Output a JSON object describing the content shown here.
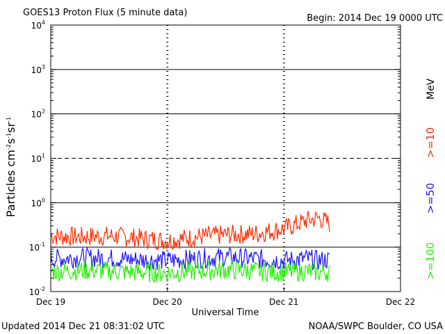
{
  "chart_data": {
    "type": "line",
    "title": "GOES13 Proton Flux (5 minute data)",
    "begin_label": "Begin: 2014 Dec 19 0000 UTC",
    "xlabel": "Universal Time",
    "ylabel": "Particles cm⁻²s⁻¹sr⁻¹",
    "yscale": "log",
    "ylim": [
      0.01,
      10000
    ],
    "y_ticks": [
      {
        "base": "10",
        "exp": "-2"
      },
      {
        "base": "10",
        "exp": "-1"
      },
      {
        "base": "10",
        "exp": "0"
      },
      {
        "base": "10",
        "exp": "1"
      },
      {
        "base": "10",
        "exp": "2"
      },
      {
        "base": "10",
        "exp": "3"
      },
      {
        "base": "10",
        "exp": "4"
      }
    ],
    "x_ticks": [
      "Dec 19",
      "Dec 20",
      "Dec 21",
      "Dec 22"
    ],
    "xlim_days": [
      0,
      3
    ],
    "threshold_lines": [
      0.1,
      1,
      100,
      1000
    ],
    "dashed_lines": [
      10
    ],
    "legend_unit": "MeV",
    "series": [
      {
        "name": ">=10",
        "color": "#ff2a00",
        "x_days": [
          0.0,
          0.25,
          0.5,
          0.75,
          1.0,
          1.25,
          1.5,
          1.75,
          2.0,
          2.1,
          2.2,
          2.3,
          2.4
        ],
        "values": [
          0.18,
          0.17,
          0.18,
          0.16,
          0.14,
          0.17,
          0.19,
          0.2,
          0.26,
          0.32,
          0.4,
          0.45,
          0.33
        ]
      },
      {
        "name": ">=50",
        "color": "#1a10ff",
        "x_days": [
          0.0,
          0.25,
          0.5,
          0.75,
          1.0,
          1.25,
          1.5,
          1.75,
          2.0,
          2.1,
          2.2,
          2.3,
          2.4
        ],
        "values": [
          0.055,
          0.058,
          0.056,
          0.052,
          0.05,
          0.055,
          0.06,
          0.055,
          0.05,
          0.052,
          0.055,
          0.05,
          0.052
        ]
      },
      {
        "name": ">=100",
        "color": "#22ee00",
        "x_days": [
          0.0,
          0.25,
          0.5,
          0.75,
          1.0,
          1.25,
          1.5,
          1.75,
          2.0,
          2.1,
          2.2,
          2.3,
          2.4
        ],
        "values": [
          0.028,
          0.03,
          0.029,
          0.027,
          0.026,
          0.029,
          0.031,
          0.029,
          0.027,
          0.028,
          0.029,
          0.027,
          0.028
        ]
      }
    ]
  },
  "footer": {
    "updated": "Updated 2014 Dec 21 08:31:02 UTC",
    "source": "NOAA/SWPC Boulder, CO USA"
  }
}
